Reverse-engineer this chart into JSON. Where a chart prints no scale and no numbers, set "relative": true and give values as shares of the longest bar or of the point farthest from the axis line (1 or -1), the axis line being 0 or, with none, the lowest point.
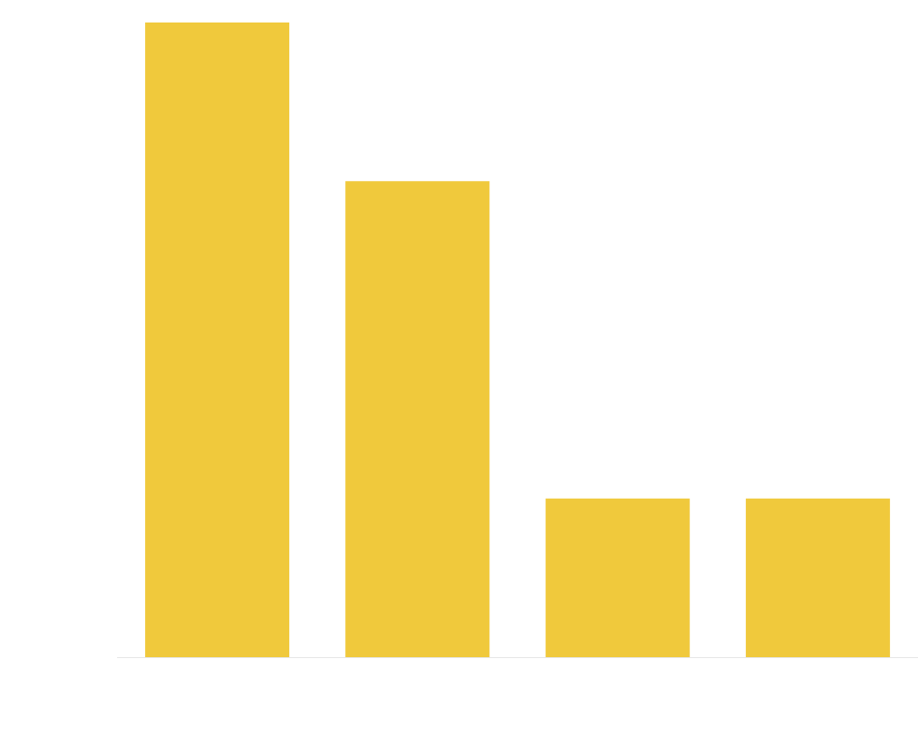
{
  "chart_data": {
    "type": "bar",
    "relative": true,
    "categories": [
      null,
      null,
      null,
      null
    ],
    "values": [
      1,
      0.75,
      0.25,
      0.25
    ],
    "color": "#f0c93c"
  }
}
